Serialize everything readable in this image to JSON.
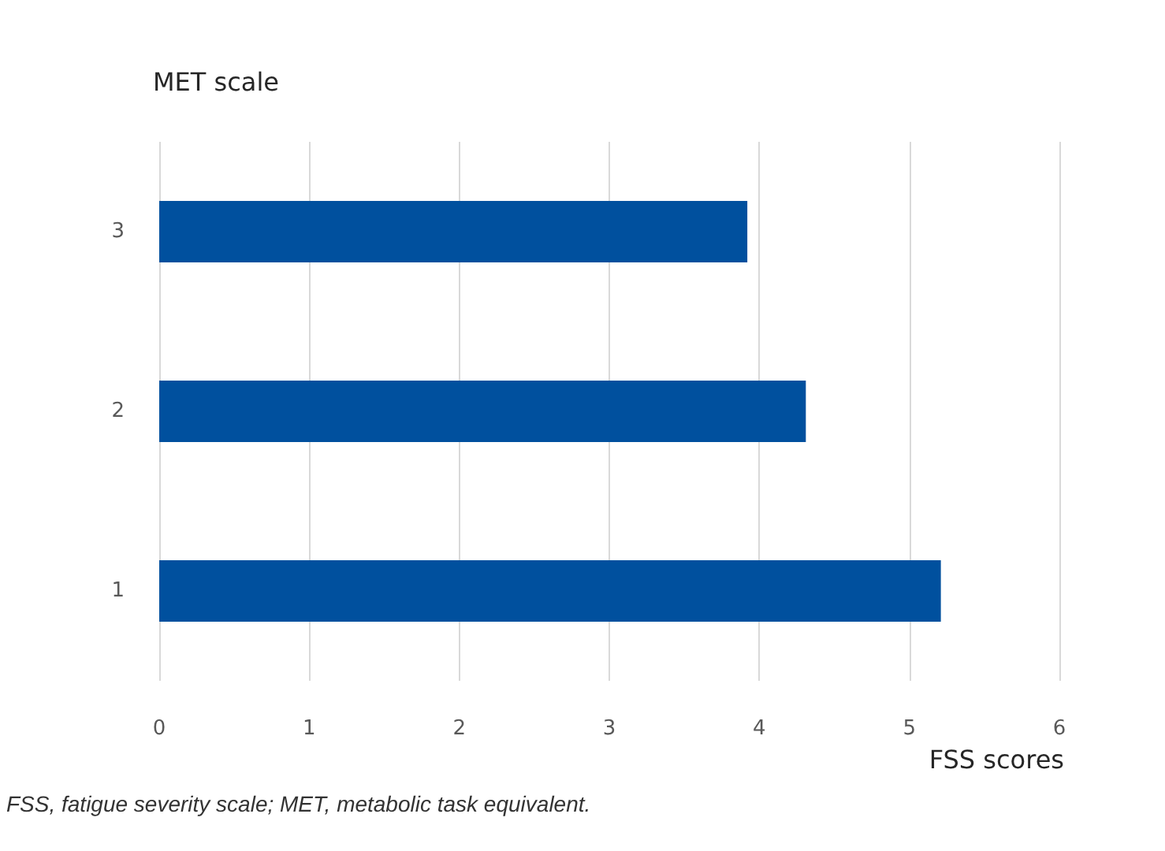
{
  "chart_data": {
    "type": "bar",
    "orientation": "horizontal",
    "title": "MET scale",
    "xlabel": "FSS scores",
    "categories": [
      "3",
      "2",
      "1"
    ],
    "values": [
      3.92,
      4.31,
      5.21
    ],
    "color": "#00509e",
    "xlim": [
      0,
      6
    ],
    "xticks": [
      0,
      1,
      2,
      3,
      4,
      5,
      6
    ],
    "grid": "x",
    "annotations": [
      "FSS, fatigue severity scale; MET, metabolic task equivalent."
    ]
  }
}
